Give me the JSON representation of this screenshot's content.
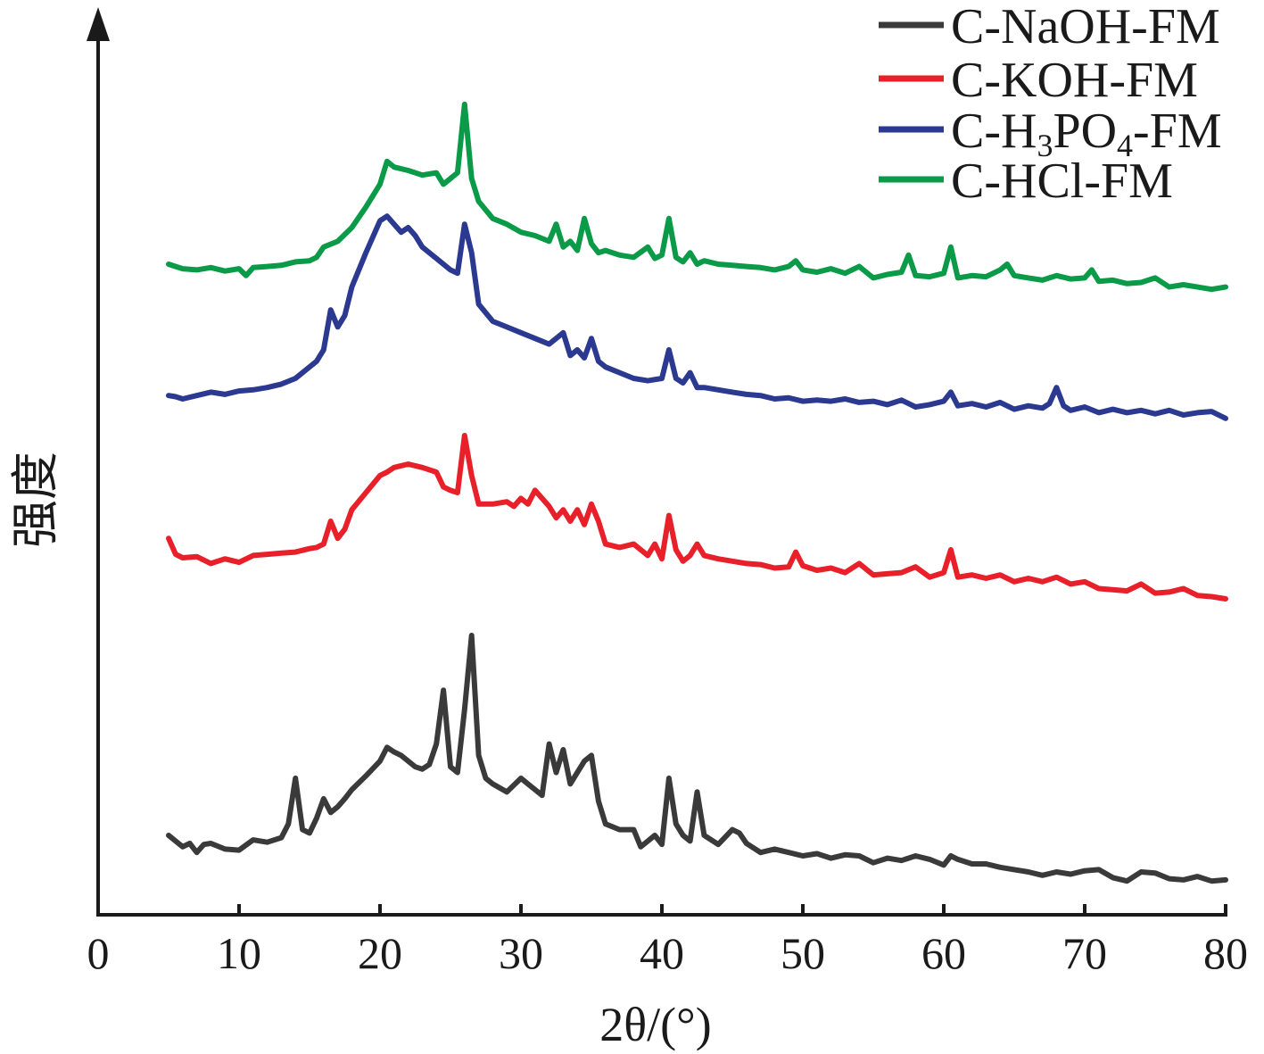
{
  "chart_data": {
    "type": "line",
    "xlabel": "2θ/(°)",
    "ylabel": "强度",
    "xlim": [
      0,
      80
    ],
    "x_ticks": [
      "0",
      "10",
      "20",
      "30",
      "40",
      "50",
      "60",
      "70",
      "80"
    ],
    "y_ticks": [],
    "grid": false,
    "legend_position": "top-right",
    "colors": {
      "C-NaOH-FM": "#3a3a3a",
      "C-KOH-FM": "#e8202a",
      "C-H3PO4-FM": "#2b3990",
      "C-HCl-FM": "#0a9a48"
    },
    "legend": [
      {
        "name": "C-NaOH-FM",
        "label_parts": [
          {
            "t": "C-NaOH-FM"
          }
        ]
      },
      {
        "name": "C-KOH-FM",
        "label_parts": [
          {
            "t": "C-KOH-FM"
          }
        ]
      },
      {
        "name": "C-H3PO4-FM",
        "label_parts": [
          {
            "t": "C-H"
          },
          {
            "t": "3",
            "sub": true
          },
          {
            "t": "PO"
          },
          {
            "t": "4",
            "sub": true
          },
          {
            "t": "-FM"
          }
        ]
      },
      {
        "name": "C-HCl-FM",
        "label_parts": [
          {
            "t": "C-HCl-FM"
          }
        ]
      }
    ],
    "series": [
      {
        "name": "C-NaOH-FM",
        "x": [
          5,
          5.5,
          6,
          6.5,
          7,
          7.5,
          8,
          9,
          10,
          11,
          12,
          13,
          13.5,
          14,
          14.5,
          15,
          15.5,
          16,
          16.5,
          17,
          17.5,
          18,
          19,
          20,
          20.5,
          21,
          21.5,
          22,
          22.5,
          23,
          23.5,
          24,
          24.5,
          25,
          25.5,
          26,
          26.5,
          27,
          27.5,
          28,
          29,
          30,
          30.5,
          31,
          31.5,
          32,
          32.5,
          33,
          33.5,
          34,
          34.5,
          35,
          35.5,
          36,
          37,
          38,
          38.5,
          39,
          39.5,
          40,
          40.5,
          41,
          41.5,
          42,
          42.5,
          43,
          44,
          45,
          45.5,
          46,
          47,
          48,
          49,
          50,
          51,
          52,
          53,
          54,
          55,
          56,
          57,
          58,
          59,
          60,
          60.5,
          61,
          62,
          63,
          64,
          65,
          66,
          67,
          68,
          69,
          70,
          71,
          72,
          73,
          74,
          75,
          76,
          77,
          78,
          79,
          80
        ],
        "y": [
          5,
          4.5,
          4,
          4.3,
          3.5,
          4.2,
          4.3,
          3.8,
          3.7,
          4.6,
          4.4,
          4.8,
          6,
          10,
          5.5,
          5.2,
          6.5,
          8.2,
          7,
          7.5,
          8.2,
          9,
          10.2,
          11.5,
          12.7,
          12.3,
          12,
          11.5,
          11,
          10.8,
          11.2,
          13,
          17.7,
          11,
          10.5,
          16,
          22.5,
          12,
          10,
          9.5,
          8.8,
          10,
          9.5,
          9,
          8.5,
          13,
          10.5,
          12.5,
          9.5,
          10.5,
          11.5,
          12,
          8,
          6,
          5.5,
          5.5,
          4,
          4.5,
          5,
          4.2,
          10,
          6,
          5,
          4.5,
          8.8,
          5,
          4.2,
          5.5,
          5.2,
          4.3,
          3.5,
          3.8,
          3.5,
          3.2,
          3.4,
          3,
          3.3,
          3.2,
          2.6,
          3,
          2.8,
          3.2,
          2.9,
          2.4,
          3.2,
          2.9,
          2.5,
          2.5,
          2.2,
          2.0,
          1.8,
          1.5,
          1.8,
          1.6,
          1.9,
          2.0,
          1.3,
          1.0,
          1.8,
          1.7,
          1.2,
          1.1,
          1.4,
          1.0,
          1.1
        ]
      },
      {
        "name": "C-KOH-FM",
        "x": [
          5,
          5.5,
          6,
          7,
          8,
          9,
          10,
          11,
          12,
          13,
          14,
          15,
          15.5,
          16,
          16.5,
          17,
          17.5,
          18,
          19,
          20,
          20.5,
          21,
          22,
          23,
          24,
          24.5,
          25,
          25.5,
          26,
          26.5,
          27,
          28,
          29,
          29.5,
          30,
          30.5,
          31,
          31.5,
          32,
          32.5,
          33,
          33.5,
          34,
          34.5,
          35,
          35.5,
          36,
          37,
          38,
          39,
          39.5,
          40,
          40.5,
          41,
          41.5,
          42,
          42.5,
          43,
          44,
          45,
          46,
          47,
          48,
          49,
          49.5,
          50,
          51,
          52,
          53,
          54,
          55,
          56,
          57,
          58,
          59,
          60,
          60.5,
          61,
          62,
          63,
          64,
          65,
          66,
          67,
          68,
          69,
          70,
          71,
          72,
          73,
          74,
          75,
          76,
          77,
          78,
          79,
          80
        ],
        "y": [
          31,
          29.6,
          29.3,
          29.4,
          28.8,
          29.2,
          28.9,
          29.5,
          29.6,
          29.7,
          29.8,
          30.1,
          30.2,
          30.5,
          32.5,
          31,
          31.8,
          33.5,
          35,
          36.5,
          36.8,
          37.2,
          37.5,
          37.2,
          36.8,
          35.5,
          35.2,
          35,
          40,
          36.5,
          34,
          34,
          34.2,
          33.8,
          34.5,
          34,
          35.2,
          34.5,
          33.8,
          32.8,
          33.5,
          32.5,
          33.5,
          32.2,
          34,
          32.5,
          30.5,
          30.2,
          30.5,
          29.5,
          30.5,
          29.2,
          33,
          30,
          29,
          29.5,
          30.5,
          29.5,
          29.2,
          29.0,
          28.8,
          28.7,
          28.4,
          28.5,
          29.8,
          28.6,
          28.2,
          28.4,
          28.0,
          28.8,
          27.8,
          27.9,
          28.0,
          28.5,
          27.6,
          28.0,
          30.0,
          27.6,
          27.8,
          27.5,
          27.8,
          27.2,
          27.5,
          27.2,
          27.6,
          27.0,
          27.2,
          26.6,
          26.5,
          26.4,
          27.0,
          26.2,
          26.3,
          26.6,
          26.0,
          25.9,
          25.7
        ]
      },
      {
        "name": "C-H3PO4-FM",
        "x": [
          5,
          5.5,
          6,
          7,
          8,
          9,
          10,
          11,
          12,
          13,
          14,
          15,
          15.5,
          16,
          16.5,
          17,
          17.5,
          18,
          19,
          20,
          20.5,
          21,
          21.5,
          22,
          22.5,
          23,
          24,
          25,
          25.5,
          26,
          26.5,
          27,
          28,
          29,
          30,
          31,
          32,
          33,
          33.5,
          34,
          34.5,
          35,
          35.5,
          36,
          37,
          38,
          39,
          40,
          40.5,
          41,
          41.5,
          42,
          42.5,
          43,
          44,
          45,
          46,
          47,
          48,
          49,
          50,
          51,
          52,
          53,
          54,
          55,
          56,
          57,
          58,
          59,
          60,
          60.5,
          61,
          62,
          63,
          64,
          65,
          66,
          67,
          67.5,
          68,
          68.5,
          69,
          70,
          71,
          72,
          73,
          74,
          75,
          76,
          77,
          78,
          79,
          80
        ],
        "y": [
          43.5,
          43.4,
          43.2,
          43.5,
          43.8,
          43.6,
          43.9,
          44,
          44.2,
          44.5,
          45,
          46,
          46.5,
          47.5,
          51,
          49.5,
          50.5,
          53,
          56,
          58.8,
          59.2,
          58.5,
          57.8,
          58.2,
          57.5,
          56.5,
          55.5,
          54.5,
          54.2,
          58.5,
          56,
          51.5,
          50,
          49.5,
          49,
          48.5,
          48,
          49,
          47,
          47.5,
          46.8,
          48.5,
          46.5,
          46,
          45.5,
          45,
          44.8,
          45,
          47.5,
          45,
          44.6,
          45.5,
          44.2,
          44.2,
          44.0,
          43.8,
          43.6,
          43.5,
          43.2,
          43.3,
          43.0,
          43.1,
          43.0,
          43.2,
          42.9,
          43.0,
          42.7,
          43.1,
          42.5,
          42.7,
          43.0,
          43.8,
          42.6,
          42.8,
          42.5,
          42.9,
          42.3,
          42.6,
          42.4,
          42.8,
          44.2,
          42.6,
          42.2,
          42.5,
          42.0,
          42.3,
          42.0,
          42.2,
          41.9,
          42.2,
          41.8,
          42.0,
          42.1,
          41.5
        ]
      },
      {
        "name": "C-HCl-FM",
        "x": [
          5,
          5.5,
          6,
          7,
          8,
          9,
          10,
          10.5,
          11,
          12,
          13,
          14,
          15,
          15.5,
          16,
          17,
          18,
          19,
          20,
          20.5,
          21,
          22,
          23,
          24,
          24.5,
          25,
          25.5,
          26,
          26.5,
          27,
          28,
          29,
          30,
          31,
          32,
          32.5,
          33,
          33.5,
          34,
          34.5,
          35,
          35.5,
          36,
          37,
          38,
          39,
          39.5,
          40,
          40.5,
          41,
          41.5,
          42,
          42.5,
          43,
          44,
          45,
          46,
          47,
          48,
          49,
          49.5,
          50,
          51,
          52,
          53,
          54,
          55,
          56,
          57,
          57.5,
          58,
          59,
          60,
          60.5,
          61,
          62,
          63,
          64,
          64.5,
          65,
          66,
          67,
          68,
          69,
          70,
          70.5,
          71,
          72,
          73,
          74,
          75,
          76,
          77,
          78,
          79,
          80
        ],
        "y": [
          55,
          54.8,
          54.6,
          54.5,
          54.7,
          54.4,
          54.6,
          54.0,
          54.7,
          54.8,
          54.9,
          55.2,
          55.3,
          55.6,
          56.5,
          57.0,
          58.2,
          60.0,
          62.0,
          64.0,
          63.5,
          63.2,
          62.8,
          63.0,
          62.0,
          62.5,
          63.0,
          69.0,
          62.5,
          60.5,
          59.0,
          58.5,
          57.8,
          57.5,
          57.0,
          58.5,
          56.5,
          57.0,
          56.2,
          59.0,
          56.8,
          56.0,
          56.2,
          55.8,
          55.6,
          56.5,
          55.5,
          55.8,
          59.0,
          55.6,
          55.2,
          56.0,
          55.0,
          55.3,
          55.0,
          54.9,
          54.8,
          54.7,
          54.5,
          54.8,
          55.3,
          54.5,
          54.3,
          54.6,
          54.2,
          54.8,
          53.8,
          54.1,
          54.3,
          55.8,
          54.0,
          53.9,
          54.2,
          56.5,
          53.8,
          54.0,
          53.9,
          54.5,
          55.0,
          54.0,
          53.8,
          53.6,
          54.0,
          53.7,
          53.8,
          54.5,
          53.5,
          53.6,
          53.3,
          53.4,
          53.8,
          53.0,
          53.2,
          53.0,
          52.8,
          53.0
        ]
      }
    ]
  }
}
